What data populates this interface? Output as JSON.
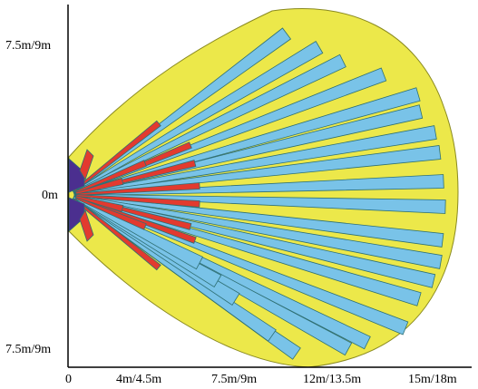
{
  "y_axis": {
    "ticks": [
      "7.5m/9m",
      "0m",
      "7.5m/9m"
    ]
  },
  "x_axis": {
    "ticks": [
      "0",
      "4m/4.5m",
      "7.5m/9m",
      "12m/13.5m",
      "15m/18m"
    ]
  },
  "colors": {
    "background": "#ffffff",
    "coverage_area": "#ece84a",
    "long_zone": "#79c3e8",
    "mid_zone": "#e23a2f",
    "near_zone": "#4b2f8f",
    "zone_outline": "#2e6f73",
    "axis": "#000000"
  },
  "detection_pattern": {
    "long_zone_count": 22,
    "mid_zone_count": 12,
    "near_zone_count": 2
  }
}
